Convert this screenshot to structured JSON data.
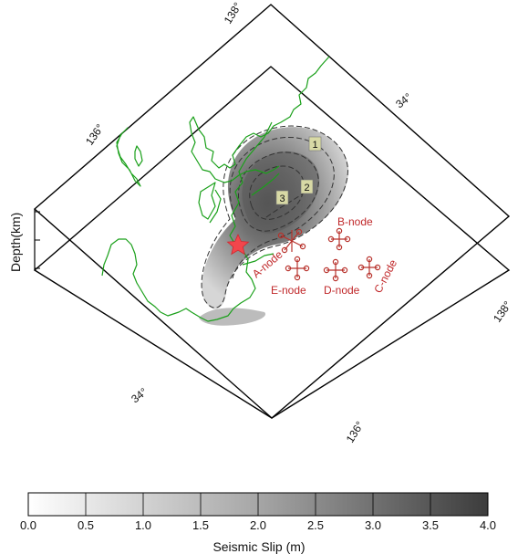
{
  "map": {
    "lat_labels": {
      "north_right": "34°",
      "south_left": "34°"
    },
    "lon_labels": {
      "top_138": "138°",
      "left_136": "136°",
      "right_138": "138°",
      "bottom_136": "136°"
    },
    "depth_axis_label": "Depth(km)",
    "contour_labels": [
      "1",
      "2",
      "3"
    ],
    "nodes": [
      {
        "id": "A",
        "label": "A-node"
      },
      {
        "id": "B",
        "label": "B-node"
      },
      {
        "id": "C",
        "label": "C-node"
      },
      {
        "id": "D",
        "label": "D-node"
      },
      {
        "id": "E",
        "label": "E-node"
      }
    ],
    "colors": {
      "coastline": "#1aa01a",
      "node": "#b8322c",
      "node_label": "#c0282a",
      "epicenter": "#f2464c",
      "frame": "#000000"
    },
    "epicenter_icon": "star-icon"
  },
  "colorbar": {
    "title": "Seismic Slip (m)",
    "ticks": [
      "0.0",
      "0.5",
      "1.0",
      "1.5",
      "2.0",
      "2.5",
      "3.0",
      "3.5",
      "4.0"
    ],
    "min": 0.0,
    "max": 4.0,
    "color_min": "#ffffff",
    "color_max": "#3c3c3c"
  }
}
